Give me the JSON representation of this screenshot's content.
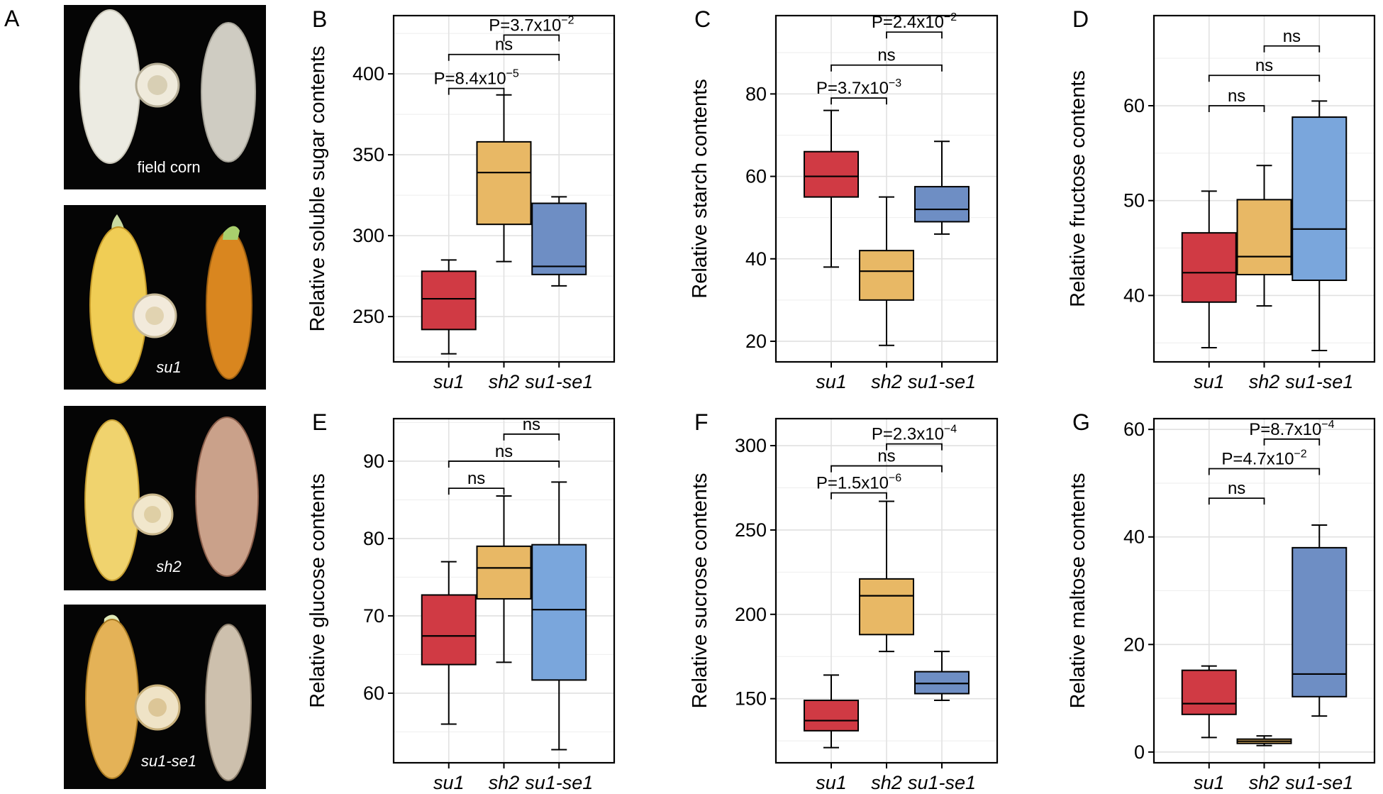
{
  "figure": {
    "panel_a_letter": "A",
    "photos": [
      {
        "caption": "field corn",
        "italic": false
      },
      {
        "caption": "su1",
        "italic": true
      },
      {
        "caption": "sh2",
        "italic": true
      },
      {
        "caption": "su1-se1",
        "italic": true
      }
    ]
  },
  "colors": {
    "su1": "#d03a44",
    "sh2": "#e8b865",
    "su1_se1_dark": "#6e8ec4",
    "su1_se1_light": "#7aa6dc"
  },
  "chart_data": [
    {
      "panel": "B",
      "type": "box",
      "ylabel": "Relative soluble sugar contents",
      "categories": [
        "su1",
        "sh2",
        "su1-se1"
      ],
      "ylim": [
        222,
        436
      ],
      "yticks": [
        250,
        300,
        350,
        400
      ],
      "boxes": [
        {
          "name": "su1",
          "min": 227,
          "q1": 242,
          "median": 261,
          "q3": 278,
          "max": 285,
          "color": "#d03a44"
        },
        {
          "name": "sh2",
          "min": 284,
          "q1": 307,
          "median": 339,
          "q3": 358,
          "max": 387,
          "color": "#e8b865"
        },
        {
          "name": "su1-se1",
          "min": 269,
          "q1": 276,
          "median": 281,
          "q3": 320,
          "max": 324,
          "color": "#6e8ec4"
        }
      ],
      "comparisons": [
        {
          "from": 1,
          "to": 2,
          "y": 391,
          "label": "P=8.4x10",
          "exp": "-5"
        },
        {
          "from": 1,
          "to": 3,
          "y": 412,
          "label": "ns",
          "exp": ""
        },
        {
          "from": 2,
          "to": 3,
          "y": 424,
          "label": "P=3.7x10",
          "exp": "-2"
        }
      ]
    },
    {
      "panel": "C",
      "type": "box",
      "ylabel": "Relative starch contents",
      "categories": [
        "su1",
        "sh2",
        "su1-se1"
      ],
      "ylim": [
        15,
        99
      ],
      "yticks": [
        20,
        40,
        60,
        80
      ],
      "boxes": [
        {
          "name": "su1",
          "min": 38,
          "q1": 55,
          "median": 60,
          "q3": 66,
          "max": 76,
          "color": "#d03a44"
        },
        {
          "name": "sh2",
          "min": 19,
          "q1": 30,
          "median": 37,
          "q3": 42,
          "max": 55,
          "color": "#e8b865"
        },
        {
          "name": "su1-se1",
          "min": 46,
          "q1": 49,
          "median": 52,
          "q3": 57.5,
          "max": 68.5,
          "color": "#6e8ec4"
        }
      ],
      "comparisons": [
        {
          "from": 1,
          "to": 2,
          "y": 79,
          "label": "P=3.7x10",
          "exp": "-3"
        },
        {
          "from": 1,
          "to": 3,
          "y": 87,
          "label": "ns",
          "exp": ""
        },
        {
          "from": 2,
          "to": 3,
          "y": 95,
          "label": "P=2.4x10",
          "exp": "-2"
        }
      ]
    },
    {
      "panel": "D",
      "type": "box",
      "ylabel": "Relative fructose contents",
      "categories": [
        "su1",
        "sh2",
        "su1-se1"
      ],
      "ylim": [
        33,
        69.5
      ],
      "yticks": [
        40,
        50,
        60
      ],
      "boxes": [
        {
          "name": "su1",
          "min": 34.5,
          "q1": 39.3,
          "median": 42.4,
          "q3": 46.6,
          "max": 51,
          "color": "#d03a44"
        },
        {
          "name": "sh2",
          "min": 38.9,
          "q1": 42.2,
          "median": 44.1,
          "q3": 50.1,
          "max": 53.7,
          "color": "#e8b865"
        },
        {
          "name": "su1-se1",
          "min": 34.2,
          "q1": 41.6,
          "median": 47,
          "q3": 58.8,
          "max": 60.5,
          "color": "#7aa6dc"
        }
      ],
      "comparisons": [
        {
          "from": 1,
          "to": 2,
          "y": 60,
          "label": "ns",
          "exp": ""
        },
        {
          "from": 1,
          "to": 3,
          "y": 63.2,
          "label": "ns",
          "exp": ""
        },
        {
          "from": 2,
          "to": 3,
          "y": 66.3,
          "label": "ns",
          "exp": ""
        }
      ]
    },
    {
      "panel": "E",
      "type": "box",
      "ylabel": "Relative glucose contents",
      "categories": [
        "su1",
        "sh2",
        "su1-se1"
      ],
      "ylim": [
        51,
        95.5
      ],
      "yticks": [
        60,
        70,
        80,
        90
      ],
      "boxes": [
        {
          "name": "su1",
          "min": 56,
          "q1": 63.7,
          "median": 67.4,
          "q3": 72.7,
          "max": 77,
          "color": "#d03a44"
        },
        {
          "name": "sh2",
          "min": 64,
          "q1": 72.2,
          "median": 76.2,
          "q3": 79,
          "max": 85.5,
          "color": "#e8b865"
        },
        {
          "name": "su1-se1",
          "min": 52.7,
          "q1": 61.7,
          "median": 70.8,
          "q3": 79.2,
          "max": 87.3,
          "color": "#7aa6dc"
        }
      ],
      "comparisons": [
        {
          "from": 1,
          "to": 2,
          "y": 86.5,
          "label": "ns",
          "exp": ""
        },
        {
          "from": 1,
          "to": 3,
          "y": 90,
          "label": "ns",
          "exp": ""
        },
        {
          "from": 2,
          "to": 3,
          "y": 93.5,
          "label": "ns",
          "exp": ""
        }
      ]
    },
    {
      "panel": "F",
      "type": "box",
      "ylabel": "Relative sucrose contents",
      "categories": [
        "su1",
        "sh2",
        "su1-se1"
      ],
      "ylim": [
        112,
        316
      ],
      "yticks": [
        150,
        200,
        250,
        300
      ],
      "boxes": [
        {
          "name": "su1",
          "min": 121,
          "q1": 131,
          "median": 137,
          "q3": 149,
          "max": 164,
          "color": "#d03a44"
        },
        {
          "name": "sh2",
          "min": 178,
          "q1": 188,
          "median": 211,
          "q3": 221,
          "max": 267,
          "color": "#e8b865"
        },
        {
          "name": "su1-se1",
          "min": 149,
          "q1": 153,
          "median": 159,
          "q3": 166,
          "max": 178,
          "color": "#6e8ec4"
        }
      ],
      "comparisons": [
        {
          "from": 1,
          "to": 2,
          "y": 272,
          "label": "P=1.5x10",
          "exp": "-6"
        },
        {
          "from": 1,
          "to": 3,
          "y": 288,
          "label": "ns",
          "exp": ""
        },
        {
          "from": 2,
          "to": 3,
          "y": 301,
          "label": "P=2.3x10",
          "exp": "-4"
        }
      ]
    },
    {
      "panel": "G",
      "type": "box",
      "ylabel": "Relative maltose contents",
      "categories": [
        "su1",
        "sh2",
        "su1-se1"
      ],
      "ylim": [
        -2,
        62
      ],
      "yticks": [
        0,
        20,
        40,
        60
      ],
      "boxes": [
        {
          "name": "su1",
          "min": 2.7,
          "q1": 7,
          "median": 9,
          "q3": 15.2,
          "max": 16,
          "color": "#d03a44"
        },
        {
          "name": "sh2",
          "min": 1.2,
          "q1": 1.6,
          "median": 2,
          "q3": 2.4,
          "max": 3,
          "color": "#e8b865"
        },
        {
          "name": "su1-se1",
          "min": 6.7,
          "q1": 10.3,
          "median": 14.5,
          "q3": 38,
          "max": 42.2,
          "color": "#6e8ec4"
        }
      ],
      "comparisons": [
        {
          "from": 1,
          "to": 2,
          "y": 47.2,
          "label": "ns",
          "exp": ""
        },
        {
          "from": 1,
          "to": 3,
          "y": 52.7,
          "label": "P=4.7x10",
          "exp": "-2"
        },
        {
          "from": 2,
          "to": 3,
          "y": 58.2,
          "label": "P=8.7x10",
          "exp": "-4"
        }
      ]
    }
  ]
}
